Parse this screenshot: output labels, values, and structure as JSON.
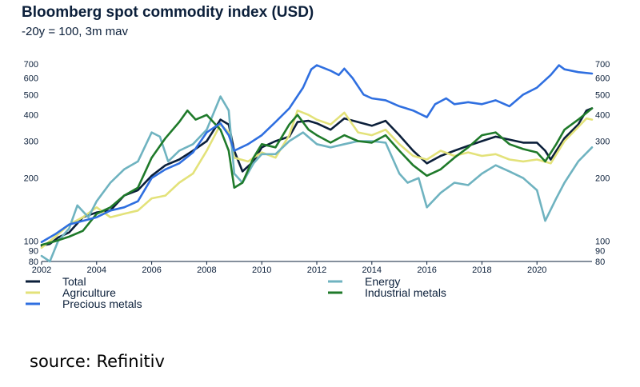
{
  "title": "Bloomberg spot commodity index (USD)",
  "subtitle": "-20y = 100, 3m mav",
  "source": "source: Refinitiv",
  "chart_data": {
    "type": "line",
    "scale": "log",
    "ylim": [
      80,
      700
    ],
    "yticks": [
      80,
      90,
      100,
      200,
      300,
      400,
      500,
      600,
      700
    ],
    "xlim": [
      2002,
      2022
    ],
    "xticks": [
      2002,
      2004,
      2006,
      2008,
      2010,
      2012,
      2014,
      2016,
      2018,
      2020
    ],
    "grid": false,
    "legend_position": "bottom",
    "series": [
      {
        "name": "Total",
        "color": "#0b1f3a",
        "points": [
          [
            2002,
            95
          ],
          [
            2002.3,
            97
          ],
          [
            2002.6,
            104
          ],
          [
            2003,
            110
          ],
          [
            2003.5,
            130
          ],
          [
            2004,
            137
          ],
          [
            2004.5,
            140
          ],
          [
            2005,
            165
          ],
          [
            2005.5,
            175
          ],
          [
            2006,
            205
          ],
          [
            2006.5,
            230
          ],
          [
            2007,
            245
          ],
          [
            2007.5,
            270
          ],
          [
            2008,
            300
          ],
          [
            2008.5,
            380
          ],
          [
            2008.8,
            360
          ],
          [
            2009,
            270
          ],
          [
            2009.3,
            215
          ],
          [
            2009.7,
            240
          ],
          [
            2010,
            280
          ],
          [
            2010.5,
            300
          ],
          [
            2011,
            315
          ],
          [
            2011.3,
            370
          ],
          [
            2011.7,
            375
          ],
          [
            2012,
            365
          ],
          [
            2012.5,
            340
          ],
          [
            2013,
            385
          ],
          [
            2013.5,
            370
          ],
          [
            2014,
            355
          ],
          [
            2014.5,
            375
          ],
          [
            2015,
            320
          ],
          [
            2015.5,
            270
          ],
          [
            2016,
            235
          ],
          [
            2016.5,
            255
          ],
          [
            2017,
            270
          ],
          [
            2017.5,
            285
          ],
          [
            2018,
            300
          ],
          [
            2018.5,
            315
          ],
          [
            2019,
            305
          ],
          [
            2019.5,
            295
          ],
          [
            2020,
            295
          ],
          [
            2020.3,
            270
          ],
          [
            2020.5,
            245
          ],
          [
            2021,
            310
          ],
          [
            2021.5,
            360
          ],
          [
            2021.8,
            420
          ],
          [
            2022,
            430
          ]
        ]
      },
      {
        "name": "Agriculture",
        "color": "#e3e27a",
        "points": [
          [
            2002,
            93
          ],
          [
            2002.5,
            105
          ],
          [
            2003,
            120
          ],
          [
            2003.5,
            130
          ],
          [
            2004,
            145
          ],
          [
            2004.5,
            130
          ],
          [
            2005,
            135
          ],
          [
            2005.5,
            140
          ],
          [
            2006,
            160
          ],
          [
            2006.5,
            165
          ],
          [
            2007,
            190
          ],
          [
            2007.5,
            210
          ],
          [
            2008,
            270
          ],
          [
            2008.5,
            360
          ],
          [
            2008.8,
            330
          ],
          [
            2009,
            250
          ],
          [
            2009.5,
            240
          ],
          [
            2010,
            265
          ],
          [
            2010.5,
            250
          ],
          [
            2011,
            320
          ],
          [
            2011.3,
            420
          ],
          [
            2011.7,
            400
          ],
          [
            2012,
            380
          ],
          [
            2012.5,
            360
          ],
          [
            2013,
            410
          ],
          [
            2013.5,
            330
          ],
          [
            2014,
            320
          ],
          [
            2014.5,
            340
          ],
          [
            2015,
            290
          ],
          [
            2015.5,
            255
          ],
          [
            2016,
            245
          ],
          [
            2016.5,
            270
          ],
          [
            2017,
            255
          ],
          [
            2017.5,
            265
          ],
          [
            2018,
            255
          ],
          [
            2018.5,
            260
          ],
          [
            2019,
            245
          ],
          [
            2019.5,
            240
          ],
          [
            2020,
            245
          ],
          [
            2020.5,
            235
          ],
          [
            2021,
            300
          ],
          [
            2021.5,
            350
          ],
          [
            2021.8,
            385
          ],
          [
            2022,
            380
          ]
        ]
      },
      {
        "name": "Energy",
        "color": "#6fb3c0",
        "points": [
          [
            2002,
            85
          ],
          [
            2002.3,
            80
          ],
          [
            2002.6,
            100
          ],
          [
            2003,
            115
          ],
          [
            2003.3,
            148
          ],
          [
            2003.7,
            130
          ],
          [
            2004,
            155
          ],
          [
            2004.5,
            190
          ],
          [
            2005,
            220
          ],
          [
            2005.5,
            240
          ],
          [
            2006,
            330
          ],
          [
            2006.3,
            315
          ],
          [
            2006.6,
            240
          ],
          [
            2007,
            270
          ],
          [
            2007.5,
            290
          ],
          [
            2008,
            340
          ],
          [
            2008.5,
            490
          ],
          [
            2008.8,
            420
          ],
          [
            2009,
            210
          ],
          [
            2009.3,
            190
          ],
          [
            2009.7,
            235
          ],
          [
            2010,
            260
          ],
          [
            2010.5,
            260
          ],
          [
            2011,
            300
          ],
          [
            2011.5,
            330
          ],
          [
            2012,
            290
          ],
          [
            2012.5,
            280
          ],
          [
            2013,
            290
          ],
          [
            2013.5,
            300
          ],
          [
            2014,
            300
          ],
          [
            2014.5,
            295
          ],
          [
            2015,
            210
          ],
          [
            2015.3,
            190
          ],
          [
            2015.7,
            200
          ],
          [
            2016,
            145
          ],
          [
            2016.5,
            170
          ],
          [
            2017,
            190
          ],
          [
            2017.5,
            185
          ],
          [
            2018,
            210
          ],
          [
            2018.5,
            230
          ],
          [
            2019,
            215
          ],
          [
            2019.5,
            200
          ],
          [
            2020,
            175
          ],
          [
            2020.3,
            125
          ],
          [
            2020.7,
            160
          ],
          [
            2021,
            190
          ],
          [
            2021.5,
            240
          ],
          [
            2022,
            280
          ]
        ]
      },
      {
        "name": "Industrial metals",
        "color": "#1f7a2a",
        "points": [
          [
            2002,
            96
          ],
          [
            2002.5,
            100
          ],
          [
            2003,
            105
          ],
          [
            2003.5,
            112
          ],
          [
            2004,
            135
          ],
          [
            2004.5,
            145
          ],
          [
            2005,
            165
          ],
          [
            2005.5,
            180
          ],
          [
            2006,
            250
          ],
          [
            2006.5,
            310
          ],
          [
            2007,
            370
          ],
          [
            2007.3,
            420
          ],
          [
            2007.6,
            380
          ],
          [
            2008,
            400
          ],
          [
            2008.5,
            340
          ],
          [
            2008.8,
            270
          ],
          [
            2009,
            180
          ],
          [
            2009.3,
            190
          ],
          [
            2009.7,
            250
          ],
          [
            2010,
            290
          ],
          [
            2010.5,
            280
          ],
          [
            2011,
            360
          ],
          [
            2011.3,
            400
          ],
          [
            2011.7,
            340
          ],
          [
            2012,
            320
          ],
          [
            2012.5,
            295
          ],
          [
            2013,
            320
          ],
          [
            2013.5,
            300
          ],
          [
            2014,
            295
          ],
          [
            2014.5,
            320
          ],
          [
            2015,
            270
          ],
          [
            2015.5,
            230
          ],
          [
            2016,
            205
          ],
          [
            2016.5,
            220
          ],
          [
            2017,
            250
          ],
          [
            2017.5,
            280
          ],
          [
            2018,
            320
          ],
          [
            2018.5,
            330
          ],
          [
            2019,
            290
          ],
          [
            2019.5,
            275
          ],
          [
            2020,
            265
          ],
          [
            2020.3,
            240
          ],
          [
            2020.7,
            290
          ],
          [
            2021,
            340
          ],
          [
            2021.5,
            380
          ],
          [
            2022,
            430
          ]
        ]
      },
      {
        "name": "Precious metals",
        "color": "#2f6fe0",
        "points": [
          [
            2002,
            99
          ],
          [
            2002.5,
            108
          ],
          [
            2003,
            120
          ],
          [
            2003.5,
            125
          ],
          [
            2004,
            130
          ],
          [
            2004.5,
            140
          ],
          [
            2005,
            145
          ],
          [
            2005.5,
            155
          ],
          [
            2006,
            200
          ],
          [
            2006.5,
            220
          ],
          [
            2007,
            235
          ],
          [
            2007.5,
            265
          ],
          [
            2008,
            330
          ],
          [
            2008.5,
            365
          ],
          [
            2008.8,
            320
          ],
          [
            2009,
            270
          ],
          [
            2009.5,
            290
          ],
          [
            2010,
            320
          ],
          [
            2010.5,
            370
          ],
          [
            2011,
            430
          ],
          [
            2011.5,
            540
          ],
          [
            2011.8,
            660
          ],
          [
            2012,
            690
          ],
          [
            2012.5,
            650
          ],
          [
            2012.8,
            620
          ],
          [
            2013,
            665
          ],
          [
            2013.3,
            600
          ],
          [
            2013.7,
            500
          ],
          [
            2014,
            480
          ],
          [
            2014.5,
            470
          ],
          [
            2015,
            440
          ],
          [
            2015.5,
            420
          ],
          [
            2016,
            390
          ],
          [
            2016.3,
            450
          ],
          [
            2016.7,
            480
          ],
          [
            2017,
            450
          ],
          [
            2017.5,
            460
          ],
          [
            2018,
            450
          ],
          [
            2018.5,
            470
          ],
          [
            2019,
            440
          ],
          [
            2019.5,
            500
          ],
          [
            2020,
            540
          ],
          [
            2020.5,
            620
          ],
          [
            2020.8,
            690
          ],
          [
            2021,
            660
          ],
          [
            2021.5,
            640
          ],
          [
            2022,
            630
          ]
        ]
      }
    ]
  }
}
